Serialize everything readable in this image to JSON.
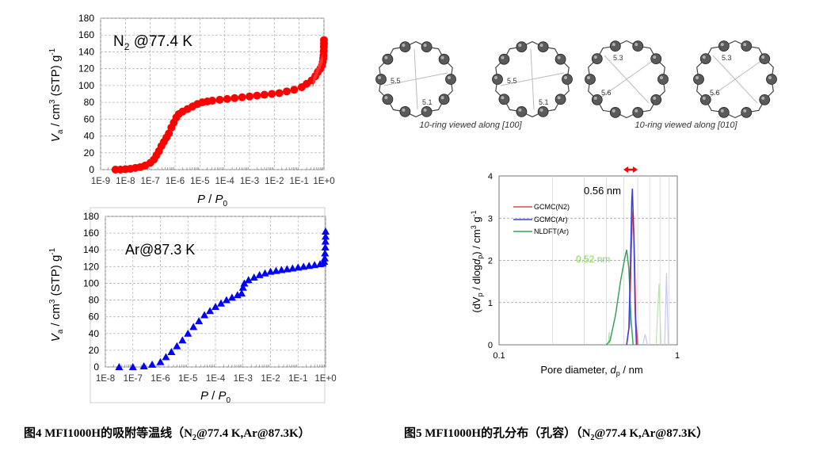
{
  "chart_data": [
    {
      "type": "scatter",
      "id": "n2_isotherm",
      "label": "N2 @77.4 K",
      "label_parts": [
        "N",
        "2",
        " @77.4 K"
      ],
      "ylabel_parts": [
        "V",
        "a",
        " / cm",
        "3",
        " (STP) g",
        "-1"
      ],
      "xlabel_parts": [
        "P",
        " / ",
        "P",
        "0"
      ],
      "x_scale": "log10",
      "xlim": [
        -9,
        0
      ],
      "ylim": [
        0,
        180
      ],
      "yticks": [
        0,
        20,
        40,
        60,
        80,
        100,
        120,
        140,
        160,
        180
      ],
      "xtick_labels": [
        "1E-9",
        "1E-8",
        "1E-7",
        "1E-6",
        "1E-5",
        "1E-4",
        "1E-3",
        "1E-2",
        "1E-1",
        "1E+0"
      ],
      "marker": "circle",
      "color": "#ff0000",
      "points": [
        [
          -8.4,
          0
        ],
        [
          -8.2,
          0
        ],
        [
          -8.0,
          0.5
        ],
        [
          -7.8,
          1
        ],
        [
          -7.6,
          2
        ],
        [
          -7.4,
          3
        ],
        [
          -7.2,
          5
        ],
        [
          -7.0,
          8
        ],
        [
          -6.85,
          12
        ],
        [
          -6.75,
          17
        ],
        [
          -6.65,
          22
        ],
        [
          -6.55,
          28
        ],
        [
          -6.45,
          33
        ],
        [
          -6.35,
          38
        ],
        [
          -6.25,
          43
        ],
        [
          -6.15,
          50
        ],
        [
          -6.05,
          56
        ],
        [
          -5.95,
          62
        ],
        [
          -5.85,
          66
        ],
        [
          -5.7,
          69
        ],
        [
          -5.5,
          72
        ],
        [
          -5.3,
          75
        ],
        [
          -5.1,
          78
        ],
        [
          -4.9,
          80
        ],
        [
          -4.7,
          81
        ],
        [
          -4.5,
          82
        ],
        [
          -4.2,
          83
        ],
        [
          -3.9,
          84
        ],
        [
          -3.6,
          85
        ],
        [
          -3.3,
          86
        ],
        [
          -3.0,
          87
        ],
        [
          -2.7,
          88
        ],
        [
          -2.4,
          89
        ],
        [
          -2.1,
          90
        ],
        [
          -1.8,
          91
        ],
        [
          -1.5,
          93
        ],
        [
          -1.2,
          95
        ],
        [
          -0.9,
          98
        ],
        [
          -0.7,
          102
        ],
        [
          -0.5,
          106
        ],
        [
          -0.35,
          111
        ],
        [
          -0.25,
          116
        ],
        [
          -0.15,
          120
        ],
        [
          -0.08,
          124
        ],
        [
          -0.05,
          128
        ],
        [
          -0.03,
          132
        ],
        [
          -0.02,
          136
        ],
        [
          -0.01,
          141
        ],
        [
          -0.005,
          146
        ],
        [
          0,
          150
        ],
        [
          0,
          154
        ]
      ]
    },
    {
      "type": "scatter",
      "id": "ar_isotherm",
      "label": "Ar@87.3 K",
      "ylabel_parts": [
        "V",
        "a",
        " / cm",
        "3",
        " (STP) g",
        "-1"
      ],
      "xlabel_parts": [
        "P",
        " / ",
        "P",
        "0"
      ],
      "x_scale": "log10",
      "xlim": [
        -8,
        0
      ],
      "ylim": [
        0,
        180
      ],
      "yticks": [
        0,
        20,
        40,
        60,
        80,
        100,
        120,
        140,
        160,
        180
      ],
      "xtick_labels": [
        "1E-8",
        "1E-7",
        "1E-6",
        "1E-5",
        "1E-4",
        "1E-3",
        "1E-2",
        "1E-1",
        "1E+0"
      ],
      "marker": "triangle",
      "color": "#0000ff",
      "points": [
        [
          -7.5,
          0
        ],
        [
          -7.0,
          0
        ],
        [
          -6.6,
          1
        ],
        [
          -6.3,
          3
        ],
        [
          -6.0,
          6
        ],
        [
          -5.8,
          12
        ],
        [
          -5.6,
          18
        ],
        [
          -5.4,
          25
        ],
        [
          -5.2,
          32
        ],
        [
          -5.0,
          40
        ],
        [
          -4.8,
          48
        ],
        [
          -4.6,
          55
        ],
        [
          -4.4,
          62
        ],
        [
          -4.2,
          67
        ],
        [
          -4.0,
          72
        ],
        [
          -3.8,
          76
        ],
        [
          -3.6,
          80
        ],
        [
          -3.4,
          83
        ],
        [
          -3.2,
          86
        ],
        [
          -3.05,
          88
        ],
        [
          -3.0,
          95
        ],
        [
          -2.95,
          100
        ],
        [
          -2.8,
          104
        ],
        [
          -2.6,
          107
        ],
        [
          -2.4,
          110
        ],
        [
          -2.2,
          112
        ],
        [
          -2.0,
          114
        ],
        [
          -1.8,
          115
        ],
        [
          -1.6,
          116
        ],
        [
          -1.4,
          117
        ],
        [
          -1.2,
          118
        ],
        [
          -1.0,
          119
        ],
        [
          -0.8,
          120
        ],
        [
          -0.6,
          121
        ],
        [
          -0.4,
          122
        ],
        [
          -0.2,
          123
        ],
        [
          -0.1,
          124
        ],
        [
          -0.05,
          126
        ],
        [
          -0.03,
          130
        ],
        [
          -0.02,
          136
        ],
        [
          -0.01,
          143
        ],
        [
          -0.005,
          150
        ],
        [
          0,
          156
        ],
        [
          0,
          162
        ]
      ]
    },
    {
      "type": "line",
      "id": "pore_distribution",
      "ylabel_parts": [
        "(dV",
        "p",
        " / dlog",
        "d",
        "p",
        ") / cm",
        "3",
        " g",
        "-1"
      ],
      "xlabel_parts": [
        "Pore diameter, ",
        "d",
        "p",
        " / nm"
      ],
      "x_scale": "log10",
      "xlim": [
        0.1,
        1.0
      ],
      "ylim": [
        0,
        4
      ],
      "yticks": [
        0,
        1,
        2,
        3,
        4
      ],
      "xtick_labels": [
        "0.1",
        "1"
      ],
      "annotations": [
        "0.56 nm",
        "0.52 nm"
      ],
      "series": [
        {
          "name": "GCMC(N2)",
          "color": "#e8474b",
          "points": [
            [
              0.52,
              0
            ],
            [
              0.54,
              0.5
            ],
            [
              0.55,
              2.0
            ],
            [
              0.56,
              3.0
            ],
            [
              0.565,
              3.2
            ],
            [
              0.575,
              2.2
            ],
            [
              0.585,
              0.6
            ],
            [
              0.6,
              0
            ]
          ]
        },
        {
          "name": "GCMC(Ar)",
          "color": "#3b3fd9",
          "points": [
            [
              0.52,
              0
            ],
            [
              0.535,
              0.4
            ],
            [
              0.545,
              1.8
            ],
            [
              0.555,
              3.4
            ],
            [
              0.56,
              3.7
            ],
            [
              0.57,
              2.6
            ],
            [
              0.58,
              0.8
            ],
            [
              0.59,
              0
            ]
          ]
        },
        {
          "name": "NLDFT(Ar)",
          "color": "#3aa15c",
          "points": [
            [
              0.4,
              0
            ],
            [
              0.42,
              0.1
            ],
            [
              0.45,
              0.7
            ],
            [
              0.48,
              1.5
            ],
            [
              0.51,
              2.1
            ],
            [
              0.52,
              2.25
            ],
            [
              0.535,
              1.8
            ],
            [
              0.55,
              0.6
            ],
            [
              0.565,
              0
            ]
          ]
        }
      ],
      "faint_peaks": [
        {
          "color": "#b8e3b0",
          "points": [
            [
              0.41,
              0
            ],
            [
              0.415,
              0.3
            ],
            [
              0.42,
              0
            ]
          ]
        },
        {
          "color": "#c6c8ee",
          "points": [
            [
              0.64,
              0
            ],
            [
              0.66,
              0.25
            ],
            [
              0.68,
              0
            ]
          ]
        },
        {
          "color": "#b8e3b0",
          "points": [
            [
              0.76,
              0
            ],
            [
              0.79,
              1.45
            ],
            [
              0.81,
              0
            ]
          ]
        },
        {
          "color": "#c6c8ee",
          "points": [
            [
              0.85,
              0
            ],
            [
              0.87,
              1.7
            ],
            [
              0.89,
              0
            ]
          ]
        }
      ]
    }
  ],
  "diagram": {
    "ring_labels": [
      [
        "5.5",
        "5.1"
      ],
      [
        "5.5",
        "5.1"
      ],
      [
        "5.3",
        "5.6"
      ],
      [
        "5.3",
        "5.6"
      ]
    ],
    "view_captions": [
      "10-ring viewed along [100]",
      "10-ring viewed along [010]"
    ]
  },
  "captions": {
    "fig4": [
      "图4 MFI1000H的吸附等温线（N",
      "2",
      "@77.4 K,Ar@87.3K）"
    ],
    "fig5": [
      "图5 MFI1000H的孔分布（孔容）（N",
      "2",
      "@77.4 K,Ar@87.3K）"
    ]
  }
}
